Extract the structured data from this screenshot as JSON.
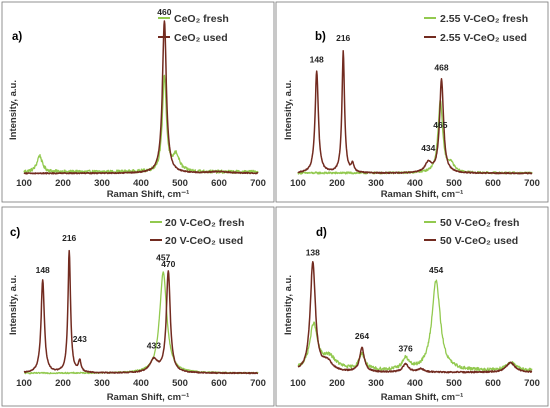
{
  "chart_data": [
    {
      "type": "line",
      "panel_label": "a)",
      "xlabel": "Raman Shift, cm⁻¹",
      "ylabel": "Intensity, a.u.",
      "xlim": [
        100,
        700
      ],
      "xticks": [
        "100",
        "200",
        "300",
        "400",
        "500",
        "600",
        "700"
      ],
      "legend_position": "top-right",
      "series": [
        {
          "name": "CeO₂ fresh",
          "color": "#92c94f",
          "peaks": [
            {
              "x": 140,
              "h": 0.1,
              "w": 8
            },
            {
              "x": 460,
              "h": 0.58,
              "w": 6
            },
            {
              "x": 490,
              "h": 0.1,
              "w": 10
            }
          ],
          "noise": 0.01,
          "baseline": 0.012
        },
        {
          "name": "CeO₂ used",
          "color": "#722b20",
          "peaks": [
            {
              "x": 460,
              "h": 0.93,
              "w": 6
            },
            {
              "x": 600,
              "h": 0.01,
              "w": 30
            }
          ],
          "noise": 0.003,
          "baseline": 0.004
        }
      ],
      "peak_labels": [
        {
          "x": 460,
          "y": 0.97,
          "text": "460"
        }
      ]
    },
    {
      "type": "line",
      "panel_label": "b)",
      "xlabel": "Raman Shift, cm⁻¹",
      "ylabel": "Intensity, a.u.",
      "xlim": [
        100,
        700
      ],
      "xticks": [
        "100",
        "200",
        "300",
        "400",
        "500",
        "600",
        "700"
      ],
      "legend_position": "top-right",
      "series": [
        {
          "name": "2.55 V-CeO₂ fresh",
          "color": "#92c94f",
          "peaks": [
            {
              "x": 465,
              "h": 0.44,
              "w": 7
            },
            {
              "x": 492,
              "h": 0.05,
              "w": 10
            }
          ],
          "noise": 0.006,
          "baseline": 0.006
        },
        {
          "name": "2.55 V-CeO₂ used",
          "color": "#722b20",
          "peaks": [
            {
              "x": 148,
              "h": 0.62,
              "w": 5
            },
            {
              "x": 216,
              "h": 0.74,
              "w": 4
            },
            {
              "x": 240,
              "h": 0.05,
              "w": 4
            },
            {
              "x": 434,
              "h": 0.06,
              "w": 10
            },
            {
              "x": 468,
              "h": 0.57,
              "w": 6
            }
          ],
          "noise": 0.003,
          "baseline": 0.004
        }
      ],
      "peak_labels": [
        {
          "x": 148,
          "y": 0.68,
          "text": "148"
        },
        {
          "x": 216,
          "y": 0.81,
          "text": "216"
        },
        {
          "x": 434,
          "y": 0.14,
          "text": "434"
        },
        {
          "x": 465,
          "y": 0.28,
          "text": "465"
        },
        {
          "x": 468,
          "y": 0.63,
          "text": "468"
        }
      ]
    },
    {
      "type": "line",
      "panel_label": "c)",
      "xlabel": "Raman Shift, cm⁻¹",
      "ylabel": "Intensity, a.u.",
      "xlim": [
        100,
        700
      ],
      "xticks": [
        "100",
        "200",
        "300",
        "400",
        "500",
        "600",
        "700"
      ],
      "legend_position": "top-right",
      "series": [
        {
          "name": "20 V-CeO₂ fresh",
          "color": "#92c94f",
          "peaks": [
            {
              "x": 457,
              "h": 0.63,
              "w": 11
            }
          ],
          "noise": 0.004,
          "baseline": 0.005
        },
        {
          "name": "20 V-CeO₂ used",
          "color": "#722b20",
          "peaks": [
            {
              "x": 148,
              "h": 0.58,
              "w": 5
            },
            {
              "x": 216,
              "h": 0.76,
              "w": 4
            },
            {
              "x": 243,
              "h": 0.07,
              "w": 4
            },
            {
              "x": 433,
              "h": 0.08,
              "w": 12
            },
            {
              "x": 470,
              "h": 0.63,
              "w": 6
            }
          ],
          "noise": 0.003,
          "baseline": 0.005
        }
      ],
      "peak_labels": [
        {
          "x": 148,
          "y": 0.63,
          "text": "148"
        },
        {
          "x": 216,
          "y": 0.83,
          "text": "216"
        },
        {
          "x": 243,
          "y": 0.2,
          "text": "243"
        },
        {
          "x": 433,
          "y": 0.16,
          "text": "433"
        },
        {
          "x": 457,
          "y": 0.71,
          "text": "457"
        },
        {
          "x": 470,
          "y": 0.67,
          "text": "470"
        }
      ]
    },
    {
      "type": "line",
      "panel_label": "d)",
      "xlabel": "Raman Shift, cm⁻¹",
      "ylabel": "Intensity, a.u.",
      "xlim": [
        100,
        700
      ],
      "xticks": [
        "100",
        "200",
        "300",
        "400",
        "500",
        "600",
        "700"
      ],
      "legend_position": "top-right",
      "series": [
        {
          "name": "50 V-CeO₂ fresh",
          "color": "#92c94f",
          "peaks": [
            {
              "x": 140,
              "h": 0.28,
              "w": 12
            },
            {
              "x": 180,
              "h": 0.08,
              "w": 22
            },
            {
              "x": 264,
              "h": 0.1,
              "w": 9
            },
            {
              "x": 376,
              "h": 0.07,
              "w": 10
            },
            {
              "x": 454,
              "h": 0.56,
              "w": 13
            },
            {
              "x": 645,
              "h": 0.05,
              "w": 15
            }
          ],
          "noise": 0.01,
          "baseline": 0.02
        },
        {
          "name": "50 V-CeO₂ used",
          "color": "#722b20",
          "peaks": [
            {
              "x": 138,
              "h": 0.68,
              "w": 8
            },
            {
              "x": 175,
              "h": 0.06,
              "w": 15
            },
            {
              "x": 264,
              "h": 0.15,
              "w": 7
            },
            {
              "x": 376,
              "h": 0.05,
              "w": 9
            },
            {
              "x": 415,
              "h": 0.02,
              "w": 10
            },
            {
              "x": 645,
              "h": 0.06,
              "w": 14
            }
          ],
          "noise": 0.004,
          "baseline": 0.01
        }
      ],
      "peak_labels": [
        {
          "x": 138,
          "y": 0.74,
          "text": "138"
        },
        {
          "x": 264,
          "y": 0.22,
          "text": "264"
        },
        {
          "x": 376,
          "y": 0.14,
          "text": "376"
        },
        {
          "x": 454,
          "y": 0.63,
          "text": "454"
        }
      ]
    }
  ]
}
